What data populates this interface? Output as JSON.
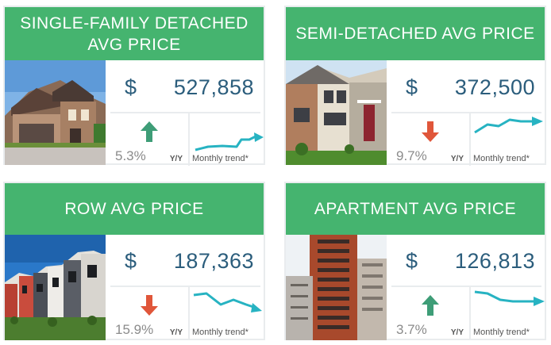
{
  "colors": {
    "header_green": "#45b46f",
    "price_text": "#2b5d7c",
    "trend_line": "#27b3c2",
    "arrow_up": "#3e9d77",
    "arrow_down": "#e0563a"
  },
  "cards": [
    {
      "title": "SINGLE-FAMILY DETACHED AVG PRICE",
      "currency": "$",
      "price": "527,858",
      "change": "5.3%",
      "direction": "up",
      "change_suffix": "Y/Y",
      "trend_label": "Monthly trend*"
    },
    {
      "title": "SEMI-DETACHED AVG PRICE",
      "currency": "$",
      "price": "372,500",
      "change": "9.7%",
      "direction": "down",
      "change_suffix": "Y/Y",
      "trend_label": "Monthly trend*"
    },
    {
      "title": "ROW AVG PRICE",
      "currency": "$",
      "price": "187,363",
      "change": "15.9%",
      "direction": "down",
      "change_suffix": "Y/Y",
      "trend_label": "Monthly trend*"
    },
    {
      "title": "APARTMENT AVG PRICE",
      "currency": "$",
      "price": "126,813",
      "change": "3.7%",
      "direction": "up",
      "change_suffix": "Y/Y",
      "trend_label": "Monthly trend*"
    }
  ]
}
